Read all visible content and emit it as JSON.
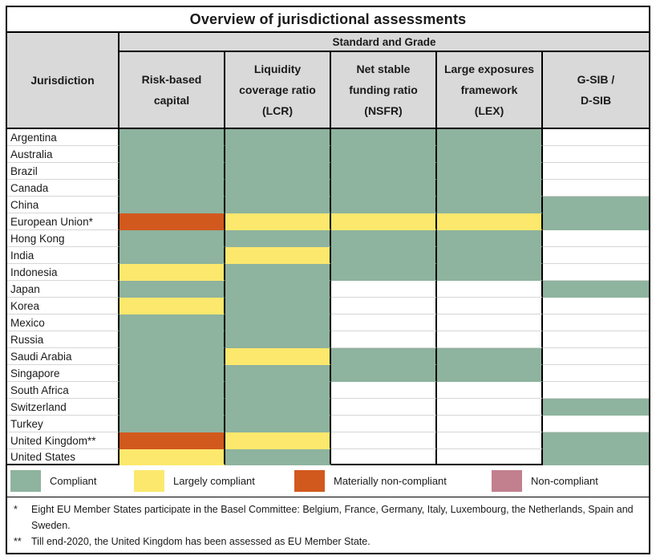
{
  "title": "Overview of jurisdictional assessments",
  "colors": {
    "compliant": "#8eb39e",
    "largely_compliant": "#fbe86d",
    "materially_non_compliant": "#d2591e",
    "non_compliant": "#c2808f",
    "header_bg": "#d9d9d9",
    "grid_line": "#d6d6d6",
    "border": "#000000"
  },
  "grade_keys": {
    "C": "compliant",
    "LC": "largely_compliant",
    "MNC": "materially_non_compliant",
    "NC": "non_compliant"
  },
  "header": {
    "jurisdiction": "Jurisdiction",
    "group": "Standard and Grade",
    "columns": [
      "Risk-based\ncapital",
      "Liquidity\ncoverage ratio\n(LCR)",
      "Net stable\nfunding ratio\n(NSFR)",
      "Large exposures\nframework\n(LEX)",
      "G-SIB /\nD-SIB"
    ]
  },
  "rows": [
    {
      "jurisdiction": "Argentina",
      "grades": [
        "C",
        "C",
        "C",
        "C",
        ""
      ]
    },
    {
      "jurisdiction": "Australia",
      "grades": [
        "C",
        "C",
        "C",
        "C",
        ""
      ]
    },
    {
      "jurisdiction": "Brazil",
      "grades": [
        "C",
        "C",
        "C",
        "C",
        ""
      ]
    },
    {
      "jurisdiction": "Canada",
      "grades": [
        "C",
        "C",
        "C",
        "C",
        ""
      ]
    },
    {
      "jurisdiction": "China",
      "grades": [
        "C",
        "C",
        "C",
        "C",
        "C"
      ]
    },
    {
      "jurisdiction": "European Union*",
      "grades": [
        "MNC",
        "LC",
        "LC",
        "LC",
        "C"
      ]
    },
    {
      "jurisdiction": "Hong Kong",
      "grades": [
        "C",
        "C",
        "C",
        "C",
        ""
      ]
    },
    {
      "jurisdiction": "India",
      "grades": [
        "C",
        "LC",
        "C",
        "C",
        ""
      ]
    },
    {
      "jurisdiction": "Indonesia",
      "grades": [
        "LC",
        "C",
        "C",
        "C",
        ""
      ]
    },
    {
      "jurisdiction": "Japan",
      "grades": [
        "C",
        "C",
        "",
        "",
        "C"
      ]
    },
    {
      "jurisdiction": "Korea",
      "grades": [
        "LC",
        "C",
        "",
        "",
        ""
      ]
    },
    {
      "jurisdiction": "Mexico",
      "grades": [
        "C",
        "C",
        "",
        "",
        ""
      ]
    },
    {
      "jurisdiction": "Russia",
      "grades": [
        "C",
        "C",
        "",
        "",
        ""
      ]
    },
    {
      "jurisdiction": "Saudi Arabia",
      "grades": [
        "C",
        "LC",
        "C",
        "C",
        ""
      ]
    },
    {
      "jurisdiction": "Singapore",
      "grades": [
        "C",
        "C",
        "C",
        "C",
        ""
      ]
    },
    {
      "jurisdiction": "South Africa",
      "grades": [
        "C",
        "C",
        "",
        "",
        ""
      ]
    },
    {
      "jurisdiction": "Switzerland",
      "grades": [
        "C",
        "C",
        "",
        "",
        "C"
      ]
    },
    {
      "jurisdiction": "Turkey",
      "grades": [
        "C",
        "C",
        "",
        "",
        ""
      ]
    },
    {
      "jurisdiction": "United Kingdom**",
      "grades": [
        "MNC",
        "LC",
        "",
        "",
        "C"
      ]
    },
    {
      "jurisdiction": "United States",
      "grades": [
        "LC",
        "C",
        "",
        "",
        "C"
      ]
    }
  ],
  "legend": {
    "items": [
      {
        "code": "C",
        "label": "Compliant"
      },
      {
        "code": "LC",
        "label": "Largely compliant"
      },
      {
        "code": "MNC",
        "label": "Materially non-compliant"
      },
      {
        "code": "NC",
        "label": "Non-compliant"
      }
    ]
  },
  "footnotes": [
    {
      "marker": "*",
      "text": "Eight EU Member States participate in the Basel Committee: Belgium, France, Germany, Italy, Luxembourg, the Netherlands, Spain and Sweden."
    },
    {
      "marker": "**",
      "text": "Till end-2020, the United Kingdom has been assessed as EU Member State."
    }
  ]
}
